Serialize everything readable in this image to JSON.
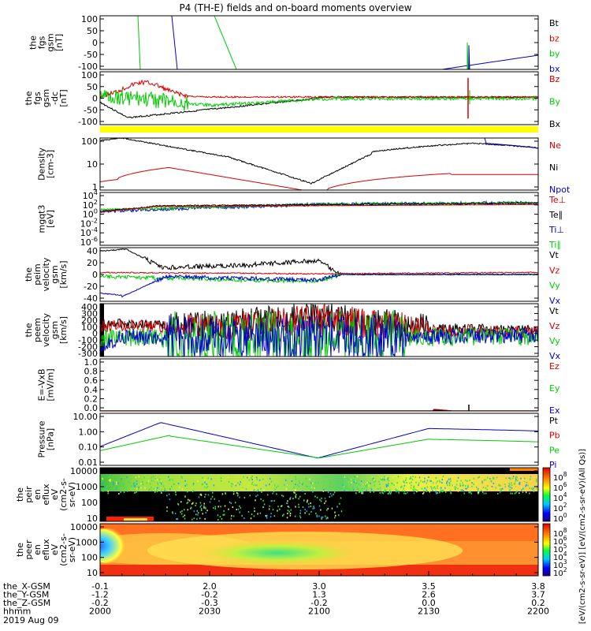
{
  "title": "P4 (TH-E) fields and on-board moments overview",
  "colors": {
    "black": "#000000",
    "red": "#d40000",
    "green": "#00cc00",
    "blue": "#0000cc",
    "yellow": "#ffff00"
  },
  "time_axis": {
    "ticks": [
      "2000",
      "2030",
      "2100",
      "2130",
      "2200"
    ],
    "rows": [
      {
        "label": "the_X-GSM",
        "values": [
          "-0.1",
          "2.0",
          "3.0",
          "3.5",
          "3.8"
        ]
      },
      {
        "label": "the_Y-GSM",
        "values": [
          "-1.2",
          "-0.2",
          "1.3",
          "2.6",
          "3.7"
        ]
      },
      {
        "label": "the_Z-GSM",
        "values": [
          "-0.2",
          "-0.3",
          "-0.2",
          "0.0",
          "0.2"
        ]
      },
      {
        "label": "hhmm",
        "values": [
          "2000",
          "2030",
          "2100",
          "2130",
          "2200"
        ]
      }
    ],
    "date": "2019 Aug 09"
  },
  "chart_data": [
    {
      "type": "line",
      "panel": "the_fgs_gsm",
      "ylabel": [
        "the",
        "fgs",
        "gsm",
        "[nT]"
      ],
      "ylim": [
        -100,
        100
      ],
      "yticks": [
        "100",
        "50",
        "0",
        "-50",
        "-100"
      ],
      "series": [
        {
          "name": "Bt",
          "color": "#000000"
        },
        {
          "name": "bz",
          "color": "#d40000"
        },
        {
          "name": "by",
          "color": "#00cc00"
        },
        {
          "name": "bx",
          "color": "#0000cc"
        }
      ]
    },
    {
      "type": "line",
      "panel": "the_fgs_gsm_dc",
      "ylabel": [
        "the",
        "fgs",
        "gsm",
        "-dc",
        "[nT]"
      ],
      "ylim": [
        -130,
        130
      ],
      "yticks": [
        "100",
        "50",
        "0",
        "-50",
        "-100"
      ],
      "series": [
        {
          "name": "Bz",
          "color": "#d40000"
        },
        {
          "name": "By",
          "color": "#00cc00"
        },
        {
          "name": "Bx",
          "color": "#000000"
        }
      ]
    },
    {
      "type": "line",
      "panel": "density",
      "ylabel": [
        "Density",
        "[cm-3]"
      ],
      "scale": "log",
      "yticks": [
        "100",
        "10",
        "1"
      ],
      "series": [
        {
          "name": "Ne",
          "color": "#d40000"
        },
        {
          "name": "Ni",
          "color": "#000000"
        },
        {
          "name": "Npot",
          "color": "#0000cc"
        }
      ]
    },
    {
      "type": "line",
      "panel": "temperature",
      "ylabel": [
        "mgqt3",
        "[eV]"
      ],
      "scale": "log",
      "yticks": [
        "10^4",
        "10^2",
        "10^0",
        "10^-2",
        "10^-4",
        "10^-6"
      ],
      "series": [
        {
          "name": "Te⊥",
          "color": "#d40000"
        },
        {
          "name": "Te∥",
          "color": "#000000"
        },
        {
          "name": "Ti⊥",
          "color": "#0000cc"
        },
        {
          "name": "Ti∥",
          "color": "#00cc00"
        }
      ]
    },
    {
      "type": "line",
      "panel": "the_peim_velocity_gsm",
      "ylabel": [
        "the",
        "peim",
        "velocity",
        "gsm",
        "[km/s]"
      ],
      "ylim": [
        -40,
        40
      ],
      "yticks": [
        "40",
        "20",
        "0",
        "-20",
        "-40"
      ],
      "series": [
        {
          "name": "Vt",
          "color": "#000000"
        },
        {
          "name": "Vz",
          "color": "#d40000"
        },
        {
          "name": "Vy",
          "color": "#00cc00"
        },
        {
          "name": "Vx",
          "color": "#0000cc"
        }
      ]
    },
    {
      "type": "line",
      "panel": "the_peem_velocity_gsm",
      "ylabel": [
        "the",
        "peem",
        "velocity",
        "gsm",
        "[km/s]"
      ],
      "ylim": [
        -300,
        400
      ],
      "yticks": [
        "400",
        "300",
        "200",
        "100",
        "0",
        "-100",
        "-200",
        "-300"
      ],
      "series": [
        {
          "name": "Vt",
          "color": "#000000"
        },
        {
          "name": "Vz",
          "color": "#d40000"
        },
        {
          "name": "Vy",
          "color": "#00cc00"
        },
        {
          "name": "Vx",
          "color": "#0000cc"
        }
      ]
    },
    {
      "type": "line",
      "panel": "efield",
      "ylabel": [
        "E=-VxB",
        "[mV/m]"
      ],
      "ylim": [
        0,
        1.0
      ],
      "yticks": [
        "1.0",
        "0.8",
        "0.6",
        "0.4",
        "0.2",
        "0.0"
      ],
      "series": [
        {
          "name": "Ez",
          "color": "#d40000"
        },
        {
          "name": "Ey",
          "color": "#00cc00"
        },
        {
          "name": "Ex",
          "color": "#0000cc"
        }
      ]
    },
    {
      "type": "line",
      "panel": "pressure",
      "ylabel": [
        "Pressure",
        "[nPa]"
      ],
      "scale": "log",
      "yticks": [
        "10.00",
        "1.00",
        "0.10",
        "0.01"
      ],
      "series": [
        {
          "name": "Pt",
          "color": "#000000"
        },
        {
          "name": "Pb",
          "color": "#d40000"
        },
        {
          "name": "Pe",
          "color": "#00cc00"
        },
        {
          "name": "Pi",
          "color": "#0000cc"
        }
      ]
    },
    {
      "type": "heatmap",
      "panel": "the_peir_en_eflux",
      "ylabel": [
        "the",
        "peir",
        "en",
        "eflux",
        "eV",
        "(cm2-s-",
        "sr-eV)"
      ],
      "scale": "log",
      "yticks": [
        "10000",
        "1000",
        "100",
        "10"
      ]
    },
    {
      "type": "heatmap",
      "panel": "the_peer_en_eflux",
      "ylabel": [
        "the",
        "peer",
        "en",
        "eflux",
        "eV",
        "(cm2-s-",
        "sr-eV)"
      ],
      "scale": "log",
      "yticks": [
        "10000",
        "1000",
        "100",
        "10"
      ]
    }
  ],
  "colorbars": [
    {
      "panel": "the_peir_en_eflux",
      "ticks": [
        "10^8",
        "10^6",
        "10^4",
        "10^2",
        "10^0"
      ]
    },
    {
      "panel": "the_peer_en_eflux",
      "ticks": [
        "10^8",
        "10^6",
        "10^5",
        "10^4",
        "10^3",
        "10^2"
      ]
    }
  ],
  "colorbar_label": "[eV/(cm2-s-sr-eV)] [eV/(cm2-s-sr-eV)(All Qs)]"
}
